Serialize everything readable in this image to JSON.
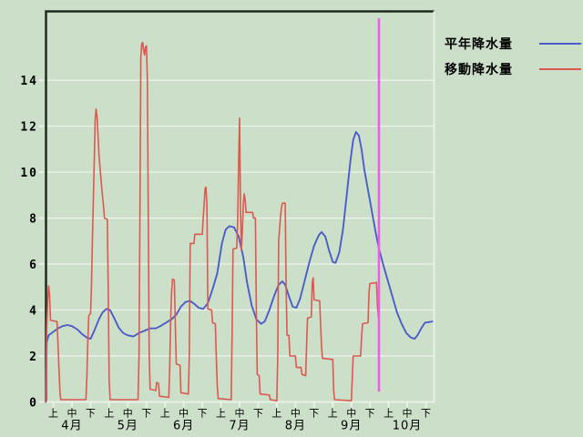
{
  "legend": {
    "items": [
      "平年降水量",
      "移動降水量"
    ]
  },
  "chart_data": {
    "type": "line",
    "title": "",
    "xlabel": "",
    "ylabel": "",
    "x_axis": {
      "unit": "ten-day period (jun) index; 0 = 4月上旬, 20 = 10月下旬",
      "months": [
        "4月",
        "5月",
        "6月",
        "7月",
        "8月",
        "9月",
        "10月"
      ],
      "period_labels": [
        "上",
        "中",
        "下"
      ],
      "periods_per_month": 3,
      "n_ticks": 21
    },
    "y_axis": {
      "min": 0,
      "max": 17,
      "tick_values": [
        0,
        2,
        4,
        6,
        8,
        10,
        12,
        14
      ],
      "gridline_values": [
        2,
        4,
        6,
        8,
        10,
        12,
        14
      ]
    },
    "grid": "horizontal-only",
    "legend_position": "top-right-outside",
    "marker_line": {
      "x": 17.48,
      "y_top": 16.7,
      "y_bottom": 0.45,
      "color": "#ec5ce8"
    },
    "colors": {
      "background": "#cbdfc9",
      "grid": "#eaf1e8",
      "border_dark": "#1f2b1f",
      "border_light": "#eaf1e8",
      "text": "#000000"
    },
    "series": [
      {
        "key": "normal-precipitation",
        "name": "平年降水量",
        "color": "#4c5cc8",
        "width": 1.9,
        "points": [
          [
            -0.4,
            0
          ],
          [
            -0.35,
            2.6
          ],
          [
            -0.25,
            2.9
          ],
          [
            0,
            3.05
          ],
          [
            0.25,
            3.2
          ],
          [
            0.5,
            3.3
          ],
          [
            0.75,
            3.35
          ],
          [
            1,
            3.3
          ],
          [
            1.3,
            3.15
          ],
          [
            1.55,
            2.95
          ],
          [
            1.8,
            2.8
          ],
          [
            2,
            2.75
          ],
          [
            2.2,
            3.1
          ],
          [
            2.45,
            3.6
          ],
          [
            2.65,
            3.9
          ],
          [
            2.85,
            4.05
          ],
          [
            3.05,
            4
          ],
          [
            3.3,
            3.6
          ],
          [
            3.5,
            3.25
          ],
          [
            3.75,
            3
          ],
          [
            4,
            2.9
          ],
          [
            4.3,
            2.85
          ],
          [
            4.6,
            3
          ],
          [
            4.9,
            3.1
          ],
          [
            5.2,
            3.2
          ],
          [
            5.5,
            3.2
          ],
          [
            5.75,
            3.3
          ],
          [
            6.05,
            3.45
          ],
          [
            6.35,
            3.6
          ],
          [
            6.6,
            3.8
          ],
          [
            6.85,
            4.15
          ],
          [
            7.1,
            4.35
          ],
          [
            7.35,
            4.4
          ],
          [
            7.6,
            4.25
          ],
          [
            7.8,
            4.1
          ],
          [
            8.05,
            4.05
          ],
          [
            8.3,
            4.3
          ],
          [
            8.55,
            4.9
          ],
          [
            8.8,
            5.6
          ],
          [
            9.05,
            6.9
          ],
          [
            9.25,
            7.5
          ],
          [
            9.45,
            7.65
          ],
          [
            9.7,
            7.6
          ],
          [
            9.95,
            7.2
          ],
          [
            10.2,
            6.3
          ],
          [
            10.4,
            5.2
          ],
          [
            10.65,
            4.2
          ],
          [
            10.9,
            3.6
          ],
          [
            11.15,
            3.4
          ],
          [
            11.35,
            3.5
          ],
          [
            11.6,
            4
          ],
          [
            11.85,
            4.6
          ],
          [
            12.1,
            5.1
          ],
          [
            12.3,
            5.25
          ],
          [
            12.45,
            5.1
          ],
          [
            12.65,
            4.6
          ],
          [
            12.85,
            4.15
          ],
          [
            13.05,
            4.1
          ],
          [
            13.25,
            4.5
          ],
          [
            13.5,
            5.3
          ],
          [
            13.75,
            6.1
          ],
          [
            14,
            6.8
          ],
          [
            14.25,
            7.25
          ],
          [
            14.4,
            7.4
          ],
          [
            14.6,
            7.2
          ],
          [
            14.8,
            6.6
          ],
          [
            15,
            6.1
          ],
          [
            15.15,
            6.05
          ],
          [
            15.35,
            6.5
          ],
          [
            15.55,
            7.5
          ],
          [
            15.75,
            9
          ],
          [
            15.95,
            10.5
          ],
          [
            16.1,
            11.4
          ],
          [
            16.25,
            11.75
          ],
          [
            16.4,
            11.6
          ],
          [
            16.55,
            11
          ],
          [
            16.7,
            10.1
          ],
          [
            16.9,
            9.2
          ],
          [
            17.1,
            8.3
          ],
          [
            17.3,
            7.4
          ],
          [
            17.5,
            6.6
          ],
          [
            17.7,
            6
          ],
          [
            17.95,
            5.3
          ],
          [
            18.2,
            4.6
          ],
          [
            18.45,
            3.9
          ],
          [
            18.7,
            3.4
          ],
          [
            18.95,
            3
          ],
          [
            19.2,
            2.8
          ],
          [
            19.4,
            2.75
          ],
          [
            19.55,
            2.9
          ],
          [
            19.75,
            3.2
          ],
          [
            19.95,
            3.45
          ],
          [
            20.35,
            3.5
          ]
        ]
      },
      {
        "key": "moving-precipitation",
        "name": "移動降水量",
        "color": "#dd5950",
        "width": 1.6,
        "points": [
          [
            -0.4,
            0
          ],
          [
            -0.35,
            3.2
          ],
          [
            -0.3,
            4.4
          ],
          [
            -0.25,
            5.05
          ],
          [
            -0.2,
            4.7
          ],
          [
            -0.15,
            3.55
          ],
          [
            0.2,
            3.5
          ],
          [
            0.25,
            2.6
          ],
          [
            0.3,
            1.6
          ],
          [
            0.35,
            0.5
          ],
          [
            0.4,
            0.1
          ],
          [
            1.75,
            0.1
          ],
          [
            1.8,
            1
          ],
          [
            1.85,
            2.5
          ],
          [
            1.9,
            3.75
          ],
          [
            2,
            3.85
          ],
          [
            2.05,
            5
          ],
          [
            2.1,
            7
          ],
          [
            2.2,
            10.5
          ],
          [
            2.25,
            12.3
          ],
          [
            2.3,
            12.75
          ],
          [
            2.35,
            12.4
          ],
          [
            2.45,
            10.8
          ],
          [
            2.5,
            10.3
          ],
          [
            2.6,
            9.3
          ],
          [
            2.7,
            8.5
          ],
          [
            2.75,
            8
          ],
          [
            2.9,
            7.95
          ],
          [
            2.95,
            5
          ],
          [
            3,
            1
          ],
          [
            3.05,
            0.1
          ],
          [
            4.55,
            0.1
          ],
          [
            4.6,
            2
          ],
          [
            4.65,
            8
          ],
          [
            4.7,
            15
          ],
          [
            4.75,
            15.6
          ],
          [
            4.8,
            15.65
          ],
          [
            4.85,
            15.3
          ],
          [
            4.9,
            15.1
          ],
          [
            4.95,
            15.45
          ],
          [
            5,
            15.5
          ],
          [
            5.05,
            14
          ],
          [
            5.1,
            8
          ],
          [
            5.15,
            2
          ],
          [
            5.2,
            0.55
          ],
          [
            5.5,
            0.5
          ],
          [
            5.55,
            0.85
          ],
          [
            5.65,
            0.8
          ],
          [
            5.7,
            0.25
          ],
          [
            6.2,
            0.2
          ],
          [
            6.25,
            1.5
          ],
          [
            6.3,
            3.5
          ],
          [
            6.35,
            4.8
          ],
          [
            6.4,
            5.35
          ],
          [
            6.5,
            5.3
          ],
          [
            6.55,
            3.5
          ],
          [
            6.6,
            1.65
          ],
          [
            6.8,
            1.6
          ],
          [
            6.85,
            0.4
          ],
          [
            7.25,
            0.35
          ],
          [
            7.3,
            2
          ],
          [
            7.35,
            6.9
          ],
          [
            7.55,
            6.9
          ],
          [
            7.6,
            7.3
          ],
          [
            8,
            7.3
          ],
          [
            8.05,
            8
          ],
          [
            8.15,
            9.3
          ],
          [
            8.2,
            9.35
          ],
          [
            8.25,
            8.5
          ],
          [
            8.3,
            4.05
          ],
          [
            8.5,
            4
          ],
          [
            8.55,
            3.45
          ],
          [
            8.7,
            3.4
          ],
          [
            8.75,
            2
          ],
          [
            8.8,
            0.7
          ],
          [
            8.85,
            0.15
          ],
          [
            9.55,
            0.1
          ],
          [
            9.6,
            3
          ],
          [
            9.65,
            6.65
          ],
          [
            9.85,
            6.7
          ],
          [
            9.9,
            8
          ],
          [
            9.95,
            10.5
          ],
          [
            10,
            12.35
          ],
          [
            10.05,
            8.5
          ],
          [
            10.1,
            6.6
          ],
          [
            10.15,
            7.5
          ],
          [
            10.2,
            8.6
          ],
          [
            10.25,
            9.05
          ],
          [
            10.3,
            8.8
          ],
          [
            10.35,
            8.25
          ],
          [
            10.7,
            8.25
          ],
          [
            10.75,
            8
          ],
          [
            10.85,
            8
          ],
          [
            10.9,
            4
          ],
          [
            10.95,
            1.2
          ],
          [
            11.05,
            1.15
          ],
          [
            11.1,
            0.35
          ],
          [
            11.6,
            0.3
          ],
          [
            11.65,
            0.1
          ],
          [
            12,
            0.05
          ],
          [
            12.05,
            2
          ],
          [
            12.1,
            7
          ],
          [
            12.15,
            7.55
          ],
          [
            12.2,
            8.1
          ],
          [
            12.25,
            8.45
          ],
          [
            12.3,
            8.65
          ],
          [
            12.45,
            8.65
          ],
          [
            12.5,
            5
          ],
          [
            12.55,
            2.9
          ],
          [
            12.65,
            2.9
          ],
          [
            12.7,
            2
          ],
          [
            13,
            2
          ],
          [
            13.05,
            1.5
          ],
          [
            13.3,
            1.5
          ],
          [
            13.35,
            1.2
          ],
          [
            13.55,
            1.15
          ],
          [
            13.6,
            2.5
          ],
          [
            13.65,
            3.65
          ],
          [
            13.85,
            3.7
          ],
          [
            13.9,
            5.2
          ],
          [
            13.95,
            5.4
          ],
          [
            14,
            4.45
          ],
          [
            14.3,
            4.4
          ],
          [
            14.4,
            2.4
          ],
          [
            14.45,
            1.9
          ],
          [
            15,
            1.85
          ],
          [
            15.05,
            0.5
          ],
          [
            15.1,
            0.1
          ],
          [
            16,
            0.05
          ],
          [
            16.05,
            1
          ],
          [
            16.1,
            2
          ],
          [
            16.5,
            2
          ],
          [
            16.55,
            2.8
          ],
          [
            16.6,
            3.4
          ],
          [
            16.9,
            3.45
          ],
          [
            16.95,
            4.8
          ],
          [
            17,
            5.15
          ],
          [
            17.35,
            5.2
          ],
          [
            17.4,
            4.2
          ],
          [
            17.46,
            3.6
          ]
        ]
      }
    ]
  }
}
